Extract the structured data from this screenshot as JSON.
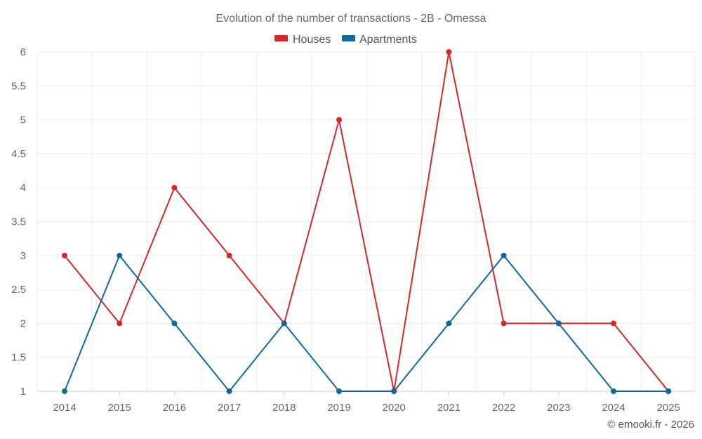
{
  "chart_data": {
    "type": "line",
    "title": "Evolution of the number of transactions - 2B - Omessa",
    "categories": [
      "2014",
      "2015",
      "2016",
      "2017",
      "2018",
      "2019",
      "2020",
      "2021",
      "2022",
      "2023",
      "2024",
      "2025"
    ],
    "series": [
      {
        "name": "Houses",
        "color": "#d62728",
        "values": [
          3,
          2,
          4,
          3,
          2,
          5,
          1,
          6,
          2,
          2,
          2,
          1
        ]
      },
      {
        "name": "Apartments",
        "color": "#0f6a9b",
        "values": [
          1,
          3,
          2,
          1,
          2,
          1,
          1,
          2,
          3,
          2,
          1,
          1
        ]
      }
    ],
    "ylim": [
      1,
      6
    ],
    "yticks": [
      "1",
      "1.5",
      "2",
      "2.5",
      "3",
      "3.5",
      "4",
      "4.5",
      "5",
      "5.5",
      "6"
    ],
    "xlabel": "",
    "ylabel": "",
    "grid": true,
    "legend": "top-center"
  },
  "credit": "© emooki.fr - 2026"
}
